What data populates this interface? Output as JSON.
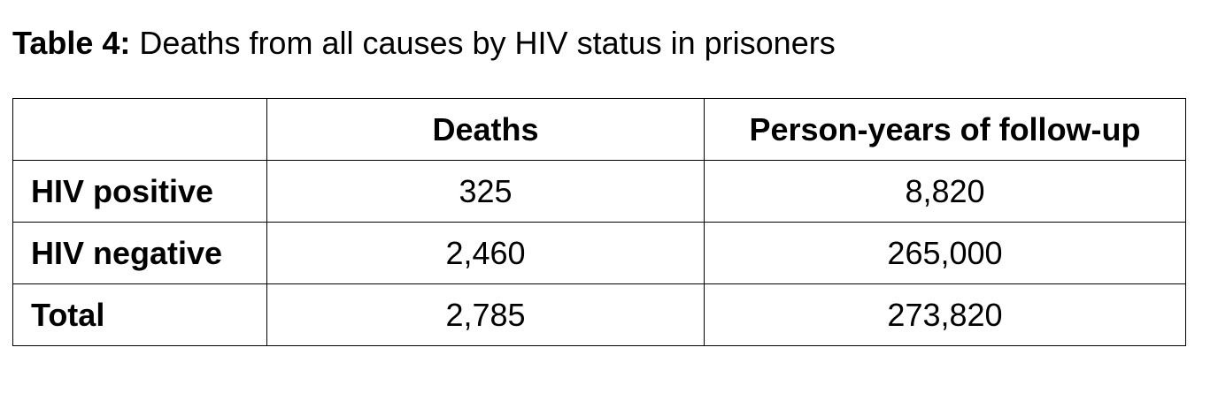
{
  "caption": {
    "label": "Table 4:",
    "text": " Deaths from all causes by HIV status in prisoners"
  },
  "table": {
    "headers": [
      "",
      "Deaths",
      "Person-years of follow-up"
    ],
    "rows": [
      {
        "label": "HIV positive",
        "deaths": "325",
        "person_years": "8,820"
      },
      {
        "label": "HIV negative",
        "deaths": "2,460",
        "person_years": "265,000"
      },
      {
        "label": "Total",
        "deaths": "2,785",
        "person_years": "273,820"
      }
    ]
  }
}
